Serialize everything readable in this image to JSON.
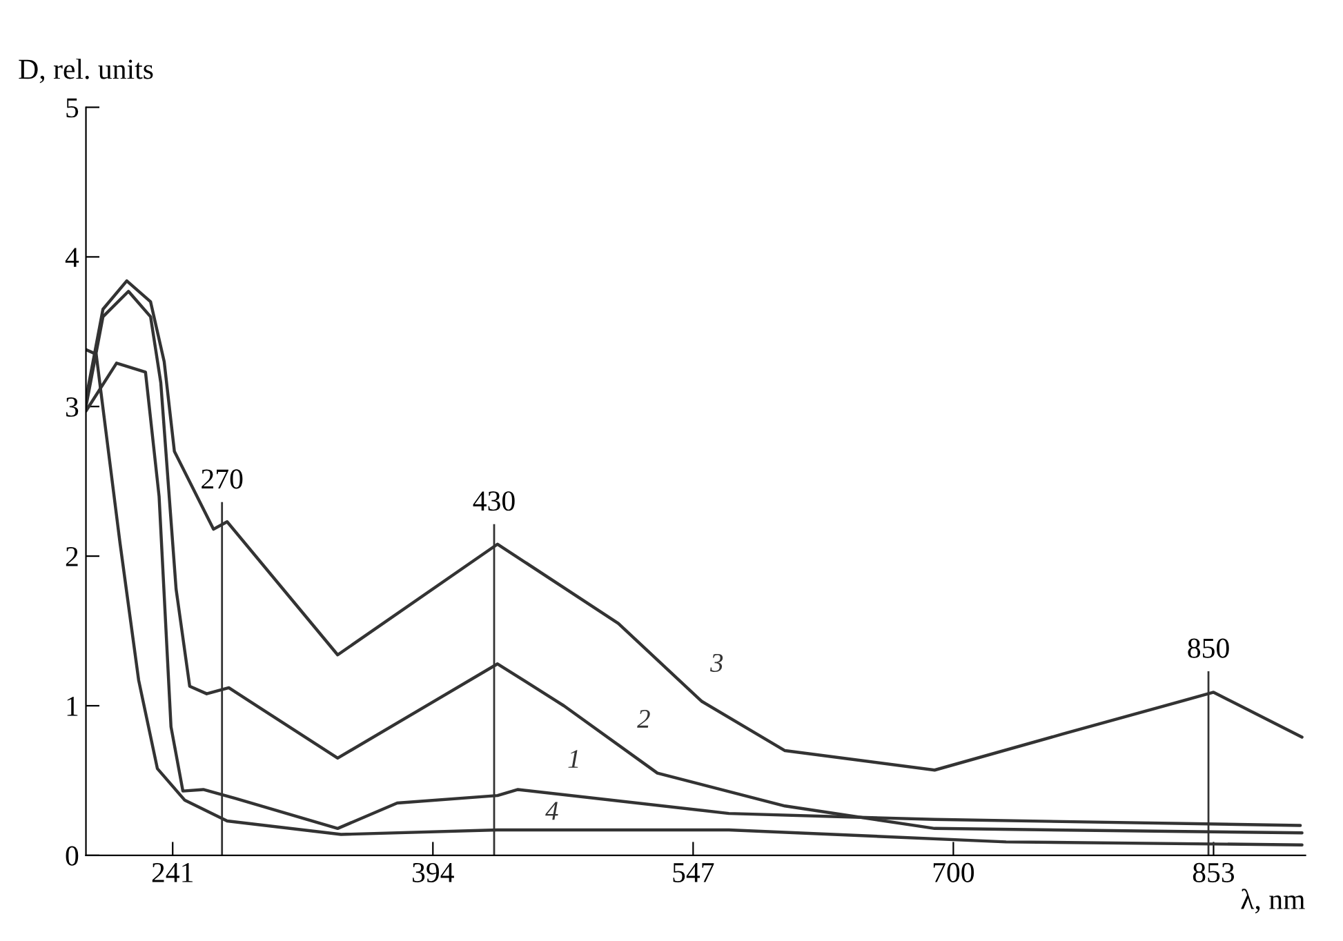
{
  "chart_data": {
    "type": "line",
    "xlabel": "λ, nm",
    "ylabel": "D, rel. units",
    "xlim": [
      190,
      907
    ],
    "ylim": [
      0,
      5
    ],
    "xticks": [
      241,
      394,
      547,
      700,
      853
    ],
    "yticks": [
      0,
      1,
      2,
      3,
      4,
      5
    ],
    "grid": false,
    "legend": false,
    "marker": "none",
    "line_style": "solid",
    "series": [
      {
        "name": "1",
        "color": "#333333",
        "x": [
          190,
          208,
          225,
          233,
          240,
          247,
          259,
          278,
          338,
          373,
          432,
          444,
          568,
          689,
          904
        ],
        "values": [
          2.97,
          3.29,
          3.23,
          2.4,
          0.86,
          0.43,
          0.44,
          0.38,
          0.18,
          0.35,
          0.4,
          0.44,
          0.28,
          0.24,
          0.2
        ]
      },
      {
        "name": "2",
        "color": "#333333",
        "x": [
          190,
          200,
          215,
          228,
          234,
          243,
          251,
          261,
          274,
          338,
          432,
          471,
          526,
          601,
          689,
          905
        ],
        "values": [
          3.0,
          3.6,
          3.77,
          3.6,
          3.16,
          1.78,
          1.13,
          1.08,
          1.12,
          0.65,
          1.28,
          1.0,
          0.55,
          0.33,
          0.18,
          0.15
        ]
      },
      {
        "name": "3",
        "color": "#333333",
        "x": [
          190,
          200,
          214,
          228,
          236,
          242,
          265,
          273,
          338,
          432,
          503,
          552,
          601,
          689,
          764,
          853,
          905
        ],
        "values": [
          3.05,
          3.65,
          3.84,
          3.7,
          3.3,
          2.7,
          2.18,
          2.23,
          1.34,
          2.08,
          1.55,
          1.03,
          0.7,
          0.57,
          0.81,
          1.09,
          0.79
        ]
      },
      {
        "name": "4",
        "color": "#333333",
        "x": [
          190,
          196,
          210,
          221,
          232,
          248,
          273,
          340,
          432,
          568,
          731,
          905
        ],
        "values": [
          3.38,
          3.35,
          2.09,
          1.17,
          0.58,
          0.37,
          0.23,
          0.14,
          0.17,
          0.17,
          0.09,
          0.07
        ]
      }
    ],
    "ref_lines": [
      {
        "axis": "x",
        "value": 270,
        "label": "270",
        "color": "#333333"
      },
      {
        "axis": "x",
        "value": 430,
        "label": "430",
        "color": "#333333"
      },
      {
        "axis": "x",
        "value": 850,
        "label": "850",
        "color": "#333333"
      }
    ]
  }
}
